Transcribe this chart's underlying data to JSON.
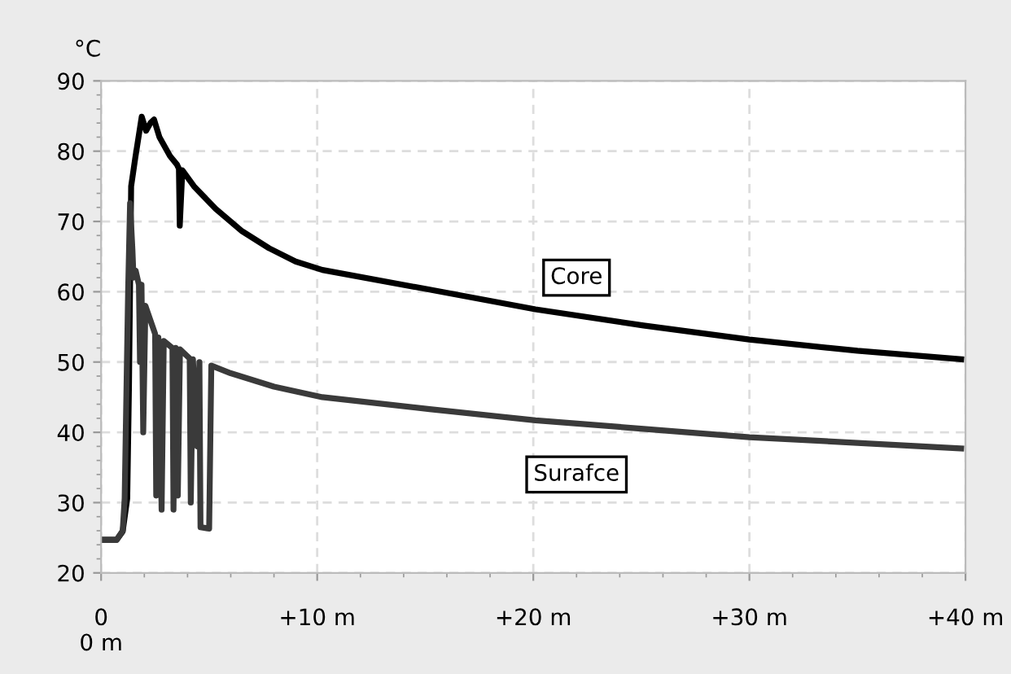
{
  "chart_data": {
    "type": "line",
    "ylabel": "°C",
    "xlim": [
      0,
      40
    ],
    "ylim": [
      20,
      90
    ],
    "xticks": [
      {
        "value": 0,
        "label": "0\n0 m"
      },
      {
        "value": 10,
        "label": "+10 m"
      },
      {
        "value": 20,
        "label": "+20 m"
      },
      {
        "value": 30,
        "label": "+30 m"
      },
      {
        "value": 40,
        "label": "+40 m"
      }
    ],
    "yticks": [
      20,
      30,
      40,
      50,
      60,
      70,
      80,
      90
    ],
    "grid": true,
    "line_style": "solid",
    "marker": "none",
    "series": [
      {
        "color": "#000000",
        "x": [
          0,
          0.72,
          1.0,
          1.21,
          1.29,
          1.39,
          1.58,
          1.88,
          2.08,
          2.28,
          2.45,
          2.7,
          3.19,
          3.51,
          3.6,
          3.64,
          3.76,
          4.3,
          5.3,
          6.53,
          7.77,
          9.0,
          10.24,
          15.2,
          20.1,
          25.1,
          30.0,
          35.0,
          39.8
        ],
        "values": [
          24.7,
          24.7,
          25.9,
          30.6,
          46.5,
          75,
          79,
          84.9,
          82.9,
          84,
          84.5,
          82,
          79.3,
          78.1,
          77.5,
          69.4,
          77.3,
          75,
          71.8,
          68.6,
          66.2,
          64.3,
          63.1,
          60.3,
          57.5,
          55.2,
          53.2,
          51.6,
          50.4
        ]
      },
      {
        "color": "#3a3a3a",
        "x": [
          0,
          0.72,
          1.0,
          1.09,
          1.25,
          1.34,
          1.45,
          1.5,
          1.6,
          1.75,
          1.8,
          1.87,
          1.95,
          2.05,
          2.5,
          2.55,
          2.65,
          2.8,
          2.9,
          3.3,
          3.35,
          3.45,
          3.55,
          3.65,
          4.1,
          4.15,
          4.25,
          4.45,
          4.55,
          4.6,
          5.0,
          5.1,
          6.0,
          8.0,
          10.24,
          15.2,
          20.1,
          25.1,
          30.0,
          35.0,
          39.8
        ],
        "values": [
          24.7,
          24.7,
          26,
          30.6,
          60,
          72.6,
          66,
          62,
          63,
          61,
          50,
          61,
          40,
          58,
          54,
          31,
          53.5,
          29,
          53,
          52,
          29,
          52,
          31,
          51.8,
          50.5,
          30,
          50.4,
          38,
          50,
          26.5,
          26.3,
          49.5,
          48.4,
          46.5,
          45.0,
          43.3,
          41.7,
          40.5,
          39.3,
          38.5,
          37.7
        ]
      }
    ],
    "annotations": [
      "Core",
      "Surafce"
    ]
  }
}
